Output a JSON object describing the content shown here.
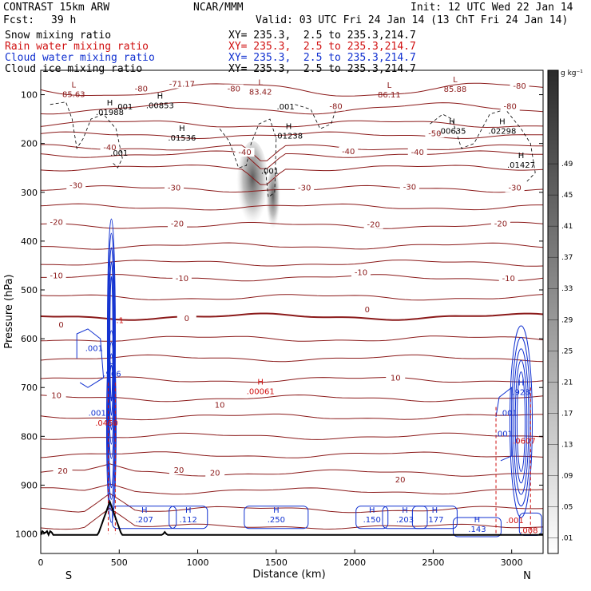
{
  "header": {
    "model": "CONTRAST 15km ARW",
    "center": "NCAR/MMM",
    "init": "Init: 12 UTC Wed 22 Jan 14",
    "fcst_label": "Fcst:",
    "fcst_value": "39 h",
    "valid": "Valid: 03 UTC Fri 24 Jan 14 (13 ChT Fri 24 Jan 14)",
    "fields": [
      {
        "name": "Snow mixing ratio",
        "xy": "XY= 235.3,  2.5 to 235.3,214.7",
        "color": "#000000"
      },
      {
        "name": "Rain water mixing ratio",
        "xy": "XY= 235.3,  2.5 to 235.3,214.7",
        "color": "#d01010"
      },
      {
        "name": "Cloud water mixing ratio",
        "xy": "XY= 235.3,  2.5 to 235.3,214.7",
        "color": "#1030d0"
      },
      {
        "name": "Cloud ice mixing ratio",
        "xy": "XY= 235.3,  2.5 to 235.3,214.7",
        "color": "#000000"
      }
    ]
  },
  "chart_data": {
    "type": "cross-section",
    "xlabel": "Distance (km)",
    "ylabel": "Pressure (hPa)",
    "xlim": [
      0,
      3200
    ],
    "ylim": [
      1040,
      50
    ],
    "x_ticks": [
      0,
      500,
      1000,
      1500,
      2000,
      2500,
      3000
    ],
    "y_ticks": [
      100,
      200,
      300,
      400,
      500,
      600,
      700,
      800,
      900,
      1000
    ],
    "x_end_labels": {
      "left": "S",
      "right": "N"
    },
    "colorbar": {
      "units": "g kg⁻¹",
      "labels": [
        ".01",
        ".05",
        ".09",
        ".13",
        ".17",
        ".21",
        ".25",
        ".29",
        ".33",
        ".37",
        ".41",
        ".45",
        ".49"
      ]
    },
    "temperature_labels": [
      {
        "label": "-80",
        "x": 640,
        "p": 92
      },
      {
        "label": "-71.17",
        "x": 900,
        "p": 82
      },
      {
        "label": "-80",
        "x": 1230,
        "p": 92
      },
      {
        "label": "-80",
        "x": 3050,
        "p": 86
      },
      {
        "label": "-80",
        "x": 2990,
        "p": 128
      },
      {
        "label": "-80",
        "x": 1880,
        "p": 128
      },
      {
        "label": "-50",
        "x": 2510,
        "p": 183
      },
      {
        "label": "-40",
        "x": 440,
        "p": 212
      },
      {
        "label": "-40",
        "x": 1300,
        "p": 222
      },
      {
        "label": "-40",
        "x": 1960,
        "p": 220
      },
      {
        "label": "-40",
        "x": 2400,
        "p": 222
      },
      {
        "label": "-30",
        "x": 225,
        "p": 290
      },
      {
        "label": "-30",
        "x": 850,
        "p": 295
      },
      {
        "label": "-30",
        "x": 1680,
        "p": 295
      },
      {
        "label": "-30",
        "x": 2350,
        "p": 293
      },
      {
        "label": "-30",
        "x": 3020,
        "p": 295
      },
      {
        "label": "-20",
        "x": 100,
        "p": 365
      },
      {
        "label": "-20",
        "x": 870,
        "p": 368
      },
      {
        "label": "-20",
        "x": 2120,
        "p": 370
      },
      {
        "label": "-20",
        "x": 2930,
        "p": 368
      },
      {
        "label": "-10",
        "x": 100,
        "p": 475
      },
      {
        "label": "-10",
        "x": 900,
        "p": 480
      },
      {
        "label": "-10",
        "x": 2040,
        "p": 468
      },
      {
        "label": "-10",
        "x": 2980,
        "p": 480
      },
      {
        "label": "0",
        "x": 130,
        "p": 575
      },
      {
        "label": "0",
        "x": 930,
        "p": 562
      },
      {
        "label": "0",
        "x": 2080,
        "p": 544
      },
      {
        "label": "10",
        "x": 100,
        "p": 720
      },
      {
        "label": "10",
        "x": 1140,
        "p": 740
      },
      {
        "label": "10",
        "x": 2260,
        "p": 684
      },
      {
        "label": "20",
        "x": 140,
        "p": 875
      },
      {
        "label": "20",
        "x": 880,
        "p": 873
      },
      {
        "label": "20",
        "x": 1110,
        "p": 879
      },
      {
        "label": "20",
        "x": 2290,
        "p": 893
      }
    ],
    "max_min_labels": [
      {
        "type": "L",
        "value": "85.63",
        "x": 210,
        "p": 95,
        "color": "#8b1a1a"
      },
      {
        "type": "H",
        "value": ".01988",
        "x": 440,
        "p": 132,
        "color": "#000000"
      },
      {
        "type": "H",
        "value": ".00853",
        "x": 760,
        "p": 118,
        "color": "#000000"
      },
      {
        "type": "L",
        "value": "83.42",
        "x": 1400,
        "p": 90,
        "color": "#8b1a1a"
      },
      {
        "type": "H",
        "value": ".01536",
        "x": 900,
        "p": 184,
        "color": "#000000"
      },
      {
        "type": "H",
        "value": ".01238",
        "x": 1580,
        "p": 180,
        "color": "#000000"
      },
      {
        "type": "L",
        "value": "86.11",
        "x": 2220,
        "p": 96,
        "color": "#8b1a1a"
      },
      {
        "type": "L",
        "value": "85.88",
        "x": 2640,
        "p": 84,
        "color": "#8b1a1a"
      },
      {
        "type": "H",
        "value": ".00635",
        "x": 2620,
        "p": 170,
        "color": "#000000"
      },
      {
        "type": "H",
        "value": ".02298",
        "x": 2940,
        "p": 170,
        "color": "#000000"
      },
      {
        "type": "H",
        "value": ".01427",
        "x": 3060,
        "p": 240,
        "color": "#000000"
      },
      {
        "type": "H",
        "value": ".00061",
        "x": 1400,
        "p": 704,
        "color": "#d01010"
      },
      {
        "type": "H",
        "value": ".966",
        "x": 455,
        "p": 668,
        "color": "#1030d0"
      },
      {
        "type": "H",
        "value": ".928",
        "x": 3060,
        "p": 705,
        "color": "#1030d0"
      },
      {
        "type": "H",
        "value": ".207",
        "x": 660,
        "p": 966,
        "color": "#1030d0"
      },
      {
        "type": "H",
        "value": ".112",
        "x": 940,
        "p": 966,
        "color": "#1030d0"
      },
      {
        "type": "H",
        "value": ".250",
        "x": 1500,
        "p": 966,
        "color": "#1030d0"
      },
      {
        "type": "H",
        "value": ".150",
        "x": 2110,
        "p": 966,
        "color": "#1030d0"
      },
      {
        "type": "H",
        "value": ".203",
        "x": 2320,
        "p": 966,
        "color": "#1030d0"
      },
      {
        "type": "H",
        "value": ".177",
        "x": 2510,
        "p": 966,
        "color": "#1030d0"
      },
      {
        "type": "H",
        "value": ".143",
        "x": 2780,
        "p": 986,
        "color": "#1030d0"
      }
    ],
    "small_values": [
      {
        "value": ".001",
        "x": 530,
        "p": 130,
        "color": "#000000"
      },
      {
        "value": ".001",
        "x": 1560,
        "p": 130,
        "color": "#000000"
      },
      {
        "value": ".001",
        "x": 500,
        "p": 225,
        "color": "#000000"
      },
      {
        "value": ".001",
        "x": 1460,
        "p": 262,
        "color": "#000000"
      },
      {
        "value": ".001",
        "x": 340,
        "p": 625,
        "color": "#1030d0"
      },
      {
        "value": ".001",
        "x": 360,
        "p": 758,
        "color": "#1030d0"
      },
      {
        "value": ".001",
        "x": 2980,
        "p": 758,
        "color": "#1030d0"
      },
      {
        "value": ".001",
        "x": 2950,
        "p": 800,
        "color": "#1030d0"
      },
      {
        "value": ".0450",
        "x": 420,
        "p": 778,
        "color": "#d01010"
      },
      {
        "value": ".0607",
        "x": 3080,
        "p": 815,
        "color": "#d01010"
      },
      {
        "value": ".1",
        "x": 505,
        "p": 568,
        "color": "#d01010"
      },
      {
        "value": ".001",
        "x": 3020,
        "p": 978,
        "color": "#d01010"
      },
      {
        "value": ".008",
        "x": 3110,
        "p": 998,
        "color": "#d01010"
      }
    ]
  }
}
